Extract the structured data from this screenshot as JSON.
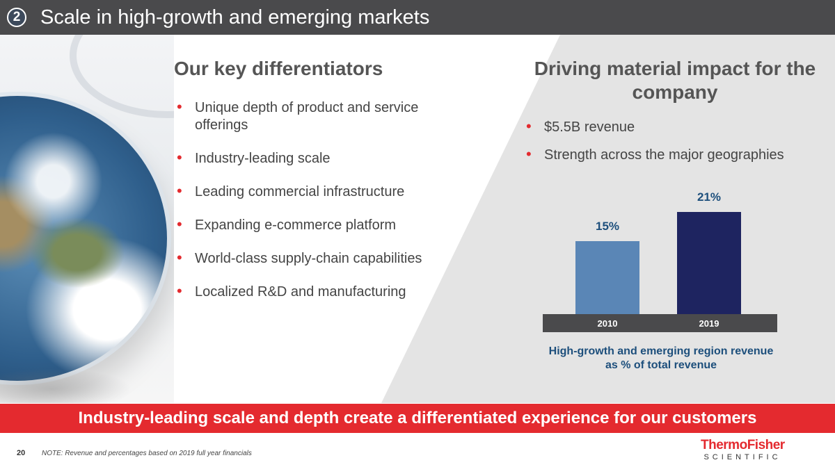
{
  "header": {
    "badge": "2",
    "title": "Scale in high-growth and emerging markets"
  },
  "left": {
    "heading": "Our key differentiators",
    "bullets": [
      "Unique depth of product and service offerings",
      "Industry-leading scale",
      "Leading commercial infrastructure",
      "Expanding e-commerce platform",
      "World-class supply-chain capabilities",
      "Localized R&D and manufacturing"
    ]
  },
  "right": {
    "heading": "Driving material impact for the company",
    "bullets": [
      "$5.5B revenue",
      "Strength across the major geographies"
    ]
  },
  "chart_data": {
    "type": "bar",
    "categories": [
      "2010",
      "2019"
    ],
    "values": [
      15,
      21
    ],
    "labels": [
      "15%",
      "21%"
    ],
    "colors": [
      "#5a86b6",
      "#1e2460"
    ],
    "title": "High-growth and emerging region revenue as % of total revenue",
    "ylim": [
      0,
      25
    ],
    "xlabel": "",
    "ylabel": ""
  },
  "footer": {
    "banner": "Industry-leading scale and depth create a differentiated experience for our customers",
    "page": "20",
    "note": "NOTE: Revenue and percentages based on 2019 full year financials"
  },
  "logo": {
    "thermo": "Thermo",
    "fisher": "Fisher",
    "sub": "SCIENTIFIC"
  }
}
